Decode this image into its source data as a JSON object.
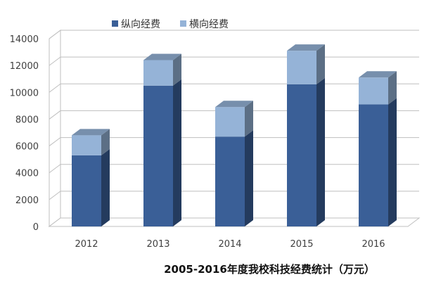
{
  "chart_data": {
    "type": "bar",
    "stacked": true,
    "style": "3d",
    "title": "2005-2016年度我校科技经费统计（万元）",
    "categories": [
      "2012",
      "2013",
      "2014",
      "2015",
      "2016"
    ],
    "series": [
      {
        "name": "纵向经费",
        "color": "#3a5f97",
        "values": [
          5300,
          10500,
          6700,
          10600,
          9100
        ]
      },
      {
        "name": "横向经费",
        "color": "#95b3d7",
        "values": [
          1500,
          1900,
          2200,
          2500,
          2000
        ]
      }
    ],
    "ylim": [
      0,
      14000
    ],
    "yticks": [
      0,
      2000,
      4000,
      6000,
      8000,
      10000,
      12000,
      14000
    ],
    "grid": true,
    "legend_position": "top"
  }
}
